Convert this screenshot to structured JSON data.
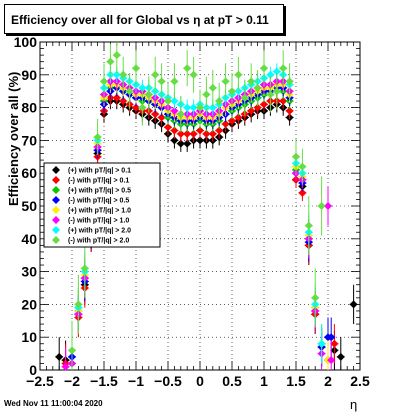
{
  "title": "Efficiency over all for Global vs   η at pT > 0.11",
  "footer": "Wed Nov 11 11:00:04 2020",
  "chart_data": {
    "type": "scatter",
    "title": "Efficiency over all for Global vs   η at pT > 0.11",
    "xlabel": "η",
    "ylabel": "Efficiency over all (%)",
    "xlim": [
      -2.5,
      2.5
    ],
    "ylim": [
      0,
      100
    ],
    "xticks": [
      -2.5,
      -2,
      -1.5,
      -1,
      -0.5,
      0,
      0.5,
      1,
      1.5,
      2,
      2.5
    ],
    "xtick_labels": [
      "−2.5",
      "−2",
      "−1.5",
      "−1",
      "−0.5",
      "0",
      "0.5",
      "1",
      "1.5",
      "2",
      "2.5"
    ],
    "yticks": [
      0,
      10,
      20,
      30,
      40,
      50,
      60,
      70,
      80,
      90,
      100
    ],
    "grid": true,
    "legend_position": "middle-left",
    "series": [
      {
        "name": "(+) with pT/|q| > 0.1",
        "color": "#000000",
        "x": [
          -2.2,
          -2.1,
          -1.9,
          -1.8,
          -1.7,
          -1.6,
          -1.5,
          -1.4,
          -1.3,
          -1.2,
          -1.1,
          -1.0,
          -0.9,
          -0.8,
          -0.7,
          -0.6,
          -0.5,
          -0.4,
          -0.3,
          -0.2,
          -0.1,
          0.0,
          0.1,
          0.2,
          0.3,
          0.4,
          0.5,
          0.6,
          0.7,
          0.8,
          0.9,
          1.0,
          1.1,
          1.2,
          1.3,
          1.4,
          1.5,
          1.6,
          1.7,
          1.8,
          1.9,
          2.0,
          2.1,
          2.2,
          2.4
        ],
        "y": [
          4,
          3,
          17,
          26,
          42,
          66,
          78,
          82,
          82,
          81,
          80,
          79,
          78,
          77,
          76,
          75,
          72,
          70,
          69,
          69,
          70,
          70,
          70,
          70,
          71,
          73,
          75,
          76,
          77,
          78,
          79,
          79,
          80,
          81,
          80,
          77,
          58,
          56,
          38,
          17,
          7,
          3,
          6,
          4,
          20
        ]
      },
      {
        "name": "(-) with pT/|q| > 0.1",
        "color": "#ff0000",
        "x": [
          -2.1,
          -1.9,
          -1.8,
          -1.7,
          -1.6,
          -1.5,
          -1.4,
          -1.3,
          -1.2,
          -1.1,
          -1.0,
          -0.9,
          -0.8,
          -0.7,
          -0.6,
          -0.5,
          -0.4,
          -0.3,
          -0.2,
          -0.1,
          0.0,
          0.1,
          0.2,
          0.3,
          0.4,
          0.5,
          0.6,
          0.7,
          0.8,
          0.9,
          1.0,
          1.1,
          1.2,
          1.3,
          1.4,
          1.5,
          1.6,
          1.7,
          1.8,
          1.9,
          2.0,
          2.1
        ],
        "y": [
          2,
          16,
          25,
          42,
          65,
          79,
          83,
          83,
          82,
          81,
          80,
          79,
          79,
          78,
          77,
          74,
          73,
          72,
          72,
          72,
          73,
          72,
          72,
          73,
          75,
          76,
          77,
          78,
          79,
          80,
          81,
          82,
          82,
          82,
          79,
          58,
          54,
          38,
          17,
          7,
          3,
          8
        ]
      },
      {
        "name": "(+) with pT/|q| > 0.5",
        "color": "#00cc00",
        "x": [
          -2.0,
          -1.9,
          -1.8,
          -1.7,
          -1.6,
          -1.5,
          -1.4,
          -1.3,
          -1.2,
          -1.1,
          -1.0,
          -0.9,
          -0.8,
          -0.7,
          -0.6,
          -0.5,
          -0.4,
          -0.3,
          -0.2,
          -0.1,
          0.0,
          0.1,
          0.2,
          0.3,
          0.4,
          0.5,
          0.6,
          0.7,
          0.8,
          0.9,
          1.0,
          1.1,
          1.2,
          1.3,
          1.4,
          1.5,
          1.6,
          1.7,
          1.8,
          1.9
        ],
        "y": [
          2,
          19,
          28,
          44,
          68,
          82,
          86,
          86,
          85,
          84,
          83,
          82,
          82,
          81,
          80,
          77,
          76,
          75,
          75,
          75,
          76,
          75,
          75,
          76,
          78,
          79,
          80,
          81,
          82,
          83,
          84,
          85,
          85,
          85,
          82,
          61,
          58,
          40,
          19,
          8
        ]
      },
      {
        "name": "(-) with pT/|q| > 0.5",
        "color": "#0000ff",
        "x": [
          -2.0,
          -1.9,
          -1.8,
          -1.7,
          -1.6,
          -1.5,
          -1.4,
          -1.3,
          -1.2,
          -1.1,
          -1.0,
          -0.9,
          -0.8,
          -0.7,
          -0.6,
          -0.5,
          -0.4,
          -0.3,
          -0.2,
          -0.1,
          0.0,
          0.1,
          0.2,
          0.3,
          0.4,
          0.5,
          0.6,
          0.7,
          0.8,
          0.9,
          1.0,
          1.1,
          1.2,
          1.3,
          1.4,
          1.5,
          1.6,
          1.7,
          1.8,
          1.9,
          2.0,
          2.05
        ],
        "y": [
          4,
          18,
          27,
          43,
          67,
          81,
          85,
          86,
          85,
          84,
          83,
          83,
          82,
          81,
          80,
          78,
          77,
          76,
          76,
          76,
          77,
          76,
          76,
          77,
          78,
          80,
          81,
          82,
          83,
          84,
          85,
          85,
          86,
          86,
          83,
          60,
          57,
          39,
          18,
          7,
          10,
          10
        ]
      },
      {
        "name": "(+) with pT/|q| > 1.0",
        "color": "#ffee00",
        "x": [
          -1.9,
          -1.8,
          -1.7,
          -1.6,
          -1.5,
          -1.4,
          -1.3,
          -1.2,
          -1.1,
          -1.0,
          -0.9,
          -0.8,
          -0.7,
          -0.6,
          -0.5,
          -0.4,
          -0.3,
          -0.2,
          -0.1,
          0.0,
          0.1,
          0.2,
          0.3,
          0.4,
          0.5,
          0.6,
          0.7,
          0.8,
          0.9,
          1.0,
          1.1,
          1.2,
          1.3,
          1.4,
          1.5,
          1.6,
          1.7,
          1.8,
          1.9,
          2.0
        ],
        "y": [
          18,
          29,
          45,
          69,
          83,
          87,
          87,
          86,
          85,
          84,
          84,
          83,
          82,
          81,
          79,
          78,
          77,
          77,
          77,
          78,
          77,
          77,
          78,
          80,
          81,
          82,
          83,
          84,
          85,
          86,
          86,
          87,
          87,
          84,
          62,
          59,
          41,
          19,
          8,
          3
        ]
      },
      {
        "name": "(-) with pT/|q| > 1.0",
        "color": "#ff00ff",
        "x": [
          -2.1,
          -2.0,
          -1.9,
          -1.8,
          -1.7,
          -1.6,
          -1.5,
          -1.4,
          -1.3,
          -1.2,
          -1.1,
          -1.0,
          -0.9,
          -0.8,
          -0.7,
          -0.6,
          -0.5,
          -0.4,
          -0.3,
          -0.2,
          -0.1,
          0.0,
          0.1,
          0.2,
          0.3,
          0.4,
          0.5,
          0.6,
          0.7,
          0.8,
          0.9,
          1.0,
          1.1,
          1.2,
          1.3,
          1.4,
          1.5,
          1.6,
          1.7,
          1.8,
          1.9,
          2.0,
          2.05
        ],
        "y": [
          1,
          2,
          17,
          28,
          44,
          68,
          84,
          88,
          88,
          87,
          86,
          85,
          85,
          84,
          83,
          82,
          80,
          79,
          78,
          78,
          78,
          79,
          78,
          78,
          79,
          81,
          82,
          83,
          84,
          85,
          86,
          87,
          87,
          88,
          88,
          85,
          60,
          58,
          40,
          18,
          5,
          50,
          3
        ]
      },
      {
        "name": "(+) with pT/|q| > 2.0",
        "color": "#00ffff",
        "x": [
          -1.9,
          -1.8,
          -1.7,
          -1.6,
          -1.5,
          -1.4,
          -1.3,
          -1.2,
          -1.1,
          -1.0,
          -0.9,
          -0.8,
          -0.7,
          -0.6,
          -0.5,
          -0.4,
          -0.3,
          -0.2,
          -0.1,
          0.0,
          0.1,
          0.2,
          0.3,
          0.4,
          0.5,
          0.6,
          0.7,
          0.8,
          0.9,
          1.0,
          1.1,
          1.2,
          1.3,
          1.4,
          1.5,
          1.6,
          1.7,
          1.8,
          1.9
        ],
        "y": [
          19,
          30,
          46,
          70,
          86,
          90,
          90,
          89,
          88,
          87,
          86,
          86,
          85,
          84,
          83,
          82,
          81,
          80,
          80,
          81,
          80,
          80,
          81,
          83,
          84,
          85,
          86,
          87,
          88,
          89,
          90,
          91,
          90,
          87,
          63,
          60,
          42,
          20,
          8
        ]
      },
      {
        "name": "(-) with pT/|q| > 2.0",
        "color": "#66dd44",
        "x": [
          -2.0,
          -1.9,
          -1.8,
          -1.7,
          -1.6,
          -1.5,
          -1.4,
          -1.3,
          -1.2,
          -1.1,
          -1.0,
          -0.9,
          -0.8,
          -0.7,
          -0.6,
          -0.5,
          -0.4,
          -0.3,
          -0.2,
          -0.1,
          0.0,
          0.1,
          0.2,
          0.3,
          0.4,
          0.5,
          0.6,
          0.7,
          0.8,
          0.9,
          1.0,
          1.1,
          1.2,
          1.3,
          1.4,
          1.5,
          1.6,
          1.7,
          1.8,
          1.9
        ],
        "y": [
          6,
          20,
          31,
          47,
          71,
          88,
          94,
          96,
          90,
          85,
          92,
          80,
          84,
          90,
          88,
          82,
          88,
          78,
          92,
          90,
          80,
          84,
          86,
          82,
          88,
          85,
          90,
          83,
          88,
          86,
          92,
          84,
          85,
          92,
          88,
          65,
          62,
          44,
          22,
          50
        ]
      }
    ]
  }
}
